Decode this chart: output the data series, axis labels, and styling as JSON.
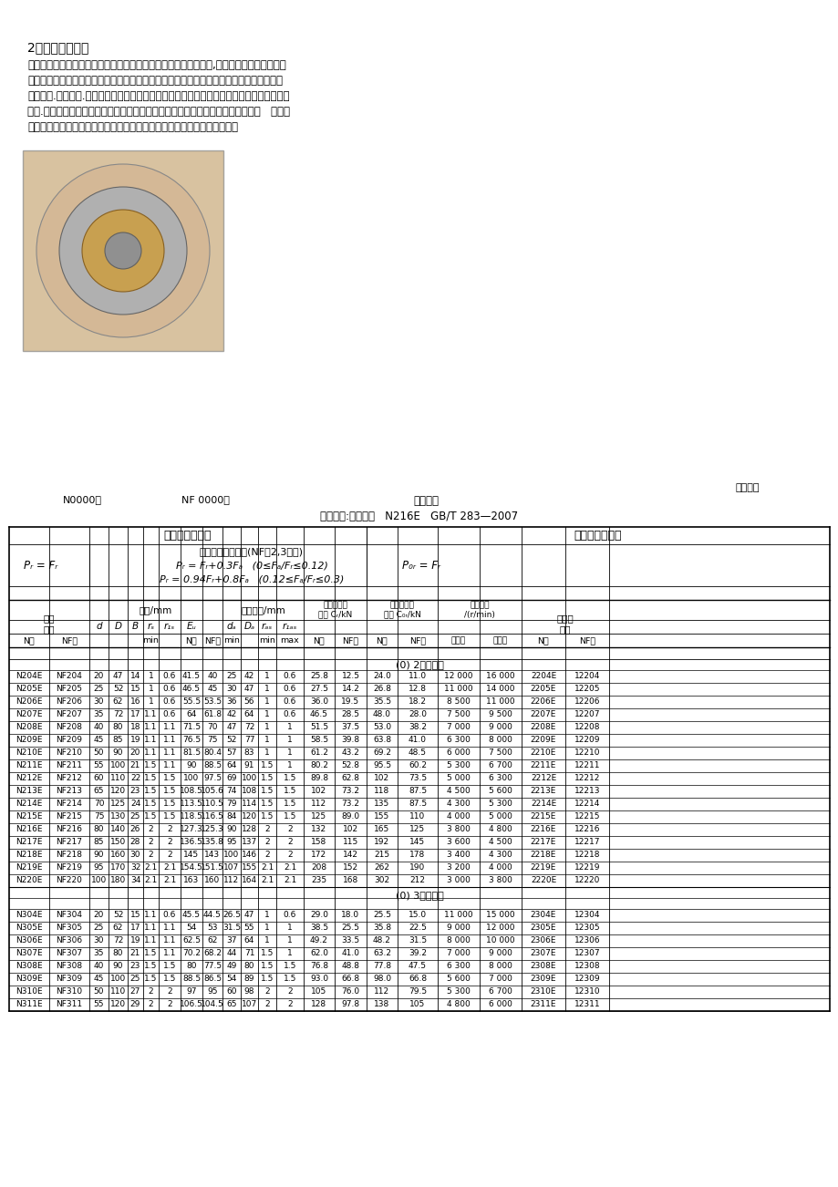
{
  "title": "2、圆柱滚子轴承",
  "para_lines": [
    "圆柱滚子轴承的滚子通常由一个轴承套圈的两个挡边引导，保持架,滚子和引导套圈组成一组",
    "合件，可与另一个轴承套圈分离，属于可分离轴承。此种轴承安装，拆卸比较方便，尤其是",
    "当要求内.外圈与轴.壳体都是过盈配合时更显示优点。此类轴承一般只用于承受径向载荷，只",
    "有内.外圈均带挡边的单列轴承可承受较小的定常轴向载荷或较大的间歇轴向载荷。   主要用",
    "于大型电机，机床主轴，车轴轴筱，柴油机曲轴以及汽车，托牛记的变筱等"
  ],
  "label_example": "标记示例:滚动轴承   N216E   GB/T 283—2007",
  "header_dynamic": "径向当量动载荷",
  "header_static": "径向当量静载荷",
  "formula_Pr": "Pᵣ = Fᵣ",
  "formula_nf_label": "对轴向承载的轴承(NF型2,3系列)",
  "formula_nf1": "Pᵣ = Fᵣ+0.3Fₐ   (0≤Fₐ/Fᵣ≤0.12)",
  "formula_nf2": "Pᵣ = 0.94Fᵣ+0.8Fₐ   (0.12≤Fₐ/Fᵣ≤0.3)",
  "formula_P0r": "P₀ᵣ = Fᵣ",
  "grp_bearing": "轴承\n代号",
  "grp_size": "尺寸/mm",
  "grp_install": "安装尺寸/mm",
  "grp_Cr": "基本额定动\n载荷 Cᵣ/kN",
  "grp_C0r": "基本额定静\n载荷 C₀ᵣ/kN",
  "grp_speed": "极限转速\n/(r/min)",
  "grp_orig": "原轴承\n代号",
  "sub1_rs": "rₛ",
  "sub1_r1s": "r₁ₛ",
  "sub1_Ew": "Eᵤ",
  "sub1_da": "dₐ",
  "sub1_Da": "Dₐ",
  "sub1_ras": "rₐₛ",
  "sub1_r1as": "r₁ₐₛ",
  "sub_min": "min",
  "sub_max": "max",
  "sub_N": "N型",
  "sub_NF": "NF型",
  "sub_grease": "脂润滑",
  "sub_oil": "油润滑",
  "section_02": "(0) 2尺寸系列",
  "section_03": "(0) 3尺寸系列",
  "N0000": "N0000型",
  "NF0000": "NF 0000型",
  "anzhuang": "安装尺寸",
  "guiding": "规定画法",
  "rows_02": [
    [
      "N204E",
      "NF204",
      "20",
      "47",
      "14",
      "1",
      "0.6",
      "41.5",
      "40",
      "25",
      "42",
      "1",
      "0.6",
      "25.8",
      "12.5",
      "24.0",
      "11.0",
      "12 000",
      "16 000",
      "2204E",
      "12204"
    ],
    [
      "N205E",
      "NF205",
      "25",
      "52",
      "15",
      "1",
      "0.6",
      "46.5",
      "45",
      "30",
      "47",
      "1",
      "0.6",
      "27.5",
      "14.2",
      "26.8",
      "12.8",
      "11 000",
      "14 000",
      "2205E",
      "12205"
    ],
    [
      "N206E",
      "NF206",
      "30",
      "62",
      "16",
      "1",
      "0.6",
      "55.5",
      "53.5",
      "36",
      "56",
      "1",
      "0.6",
      "36.0",
      "19.5",
      "35.5",
      "18.2",
      "8 500",
      "11 000",
      "2206E",
      "12206"
    ],
    [
      "N207E",
      "NF207",
      "35",
      "72",
      "17",
      "1.1",
      "0.6",
      "64",
      "61.8",
      "42",
      "64",
      "1",
      "0.6",
      "46.5",
      "28.5",
      "48.0",
      "28.0",
      "7 500",
      "9 500",
      "2207E",
      "12207"
    ],
    [
      "N208E",
      "NF208",
      "40",
      "80",
      "18",
      "1.1",
      "1.1",
      "71.5",
      "70",
      "47",
      "72",
      "1",
      "1",
      "51.5",
      "37.5",
      "53.0",
      "38.2",
      "7 000",
      "9 000",
      "2208E",
      "12208"
    ],
    [
      "N209E",
      "NF209",
      "45",
      "85",
      "19",
      "1.1",
      "1.1",
      "76.5",
      "75",
      "52",
      "77",
      "1",
      "1",
      "58.5",
      "39.8",
      "63.8",
      "41.0",
      "6 300",
      "8 000",
      "2209E",
      "12209"
    ],
    [
      "N210E",
      "NF210",
      "50",
      "90",
      "20",
      "1.1",
      "1.1",
      "81.5",
      "80.4",
      "57",
      "83",
      "1",
      "1",
      "61.2",
      "43.2",
      "69.2",
      "48.5",
      "6 000",
      "7 500",
      "2210E",
      "12210"
    ],
    [
      "N211E",
      "NF211",
      "55",
      "100",
      "21",
      "1.5",
      "1.1",
      "90",
      "88.5",
      "64",
      "91",
      "1.5",
      "1",
      "80.2",
      "52.8",
      "95.5",
      "60.2",
      "5 300",
      "6 700",
      "2211E",
      "12211"
    ],
    [
      "N212E",
      "NF212",
      "60",
      "110",
      "22",
      "1.5",
      "1.5",
      "100",
      "97.5",
      "69",
      "100",
      "1.5",
      "1.5",
      "89.8",
      "62.8",
      "102",
      "73.5",
      "5 000",
      "6 300",
      "2212E",
      "12212"
    ],
    [
      "N213E",
      "NF213",
      "65",
      "120",
      "23",
      "1.5",
      "1.5",
      "108.5",
      "105.6",
      "74",
      "108",
      "1.5",
      "1.5",
      "102",
      "73.2",
      "118",
      "87.5",
      "4 500",
      "5 600",
      "2213E",
      "12213"
    ],
    [
      "N214E",
      "NF214",
      "70",
      "125",
      "24",
      "1.5",
      "1.5",
      "113.5",
      "110.5",
      "79",
      "114",
      "1.5",
      "1.5",
      "112",
      "73.2",
      "135",
      "87.5",
      "4 300",
      "5 300",
      "2214E",
      "12214"
    ],
    [
      "N215E",
      "NF215",
      "75",
      "130",
      "25",
      "1.5",
      "1.5",
      "118.5",
      "116.5",
      "84",
      "120",
      "1.5",
      "1.5",
      "125",
      "89.0",
      "155",
      "110",
      "4 000",
      "5 000",
      "2215E",
      "12215"
    ],
    [
      "N216E",
      "NF216",
      "80",
      "140",
      "26",
      "2",
      "2",
      "127.3",
      "125.3",
      "90",
      "128",
      "2",
      "2",
      "132",
      "102",
      "165",
      "125",
      "3 800",
      "4 800",
      "2216E",
      "12216"
    ],
    [
      "N217E",
      "NF217",
      "85",
      "150",
      "28",
      "2",
      "2",
      "136.5",
      "135.8",
      "95",
      "137",
      "2",
      "2",
      "158",
      "115",
      "192",
      "145",
      "3 600",
      "4 500",
      "2217E",
      "12217"
    ],
    [
      "N218E",
      "NF218",
      "90",
      "160",
      "30",
      "2",
      "2",
      "145",
      "143",
      "100",
      "146",
      "2",
      "2",
      "172",
      "142",
      "215",
      "178",
      "3 400",
      "4 300",
      "2218E",
      "12218"
    ],
    [
      "N219E",
      "NF219",
      "95",
      "170",
      "32",
      "2.1",
      "2.1",
      "154.5",
      "151.5",
      "107",
      "155",
      "2.1",
      "2.1",
      "208",
      "152",
      "262",
      "190",
      "3 200",
      "4 000",
      "2219E",
      "12219"
    ],
    [
      "N220E",
      "NF220",
      "100",
      "180",
      "34",
      "2.1",
      "2.1",
      "163",
      "160",
      "112",
      "164",
      "2.1",
      "2.1",
      "235",
      "168",
      "302",
      "212",
      "3 000",
      "3 800",
      "2220E",
      "12220"
    ]
  ],
  "rows_03": [
    [
      "N304E",
      "NF304",
      "20",
      "52",
      "15",
      "1.1",
      "0.6",
      "45.5",
      "44.5",
      "26.5",
      "47",
      "1",
      "0.6",
      "29.0",
      "18.0",
      "25.5",
      "15.0",
      "11 000",
      "15 000",
      "2304E",
      "12304"
    ],
    [
      "N305E",
      "NF305",
      "25",
      "62",
      "17",
      "1.1",
      "1.1",
      "54",
      "53",
      "31.5",
      "55",
      "1",
      "1",
      "38.5",
      "25.5",
      "35.8",
      "22.5",
      "9 000",
      "12 000",
      "2305E",
      "12305"
    ],
    [
      "N306E",
      "NF306",
      "30",
      "72",
      "19",
      "1.1",
      "1.1",
      "62.5",
      "62",
      "37",
      "64",
      "1",
      "1",
      "49.2",
      "33.5",
      "48.2",
      "31.5",
      "8 000",
      "10 000",
      "2306E",
      "12306"
    ],
    [
      "N307E",
      "NF307",
      "35",
      "80",
      "21",
      "1.5",
      "1.1",
      "70.2",
      "68.2",
      "44",
      "71",
      "1.5",
      "1",
      "62.0",
      "41.0",
      "63.2",
      "39.2",
      "7 000",
      "9 000",
      "2307E",
      "12307"
    ],
    [
      "N308E",
      "NF308",
      "40",
      "90",
      "23",
      "1.5",
      "1.5",
      "80",
      "77.5",
      "49",
      "80",
      "1.5",
      "1.5",
      "76.8",
      "48.8",
      "77.8",
      "47.5",
      "6 300",
      "8 000",
      "2308E",
      "12308"
    ],
    [
      "N309E",
      "NF309",
      "45",
      "100",
      "25",
      "1.5",
      "1.5",
      "88.5",
      "86.5",
      "54",
      "89",
      "1.5",
      "1.5",
      "93.0",
      "66.8",
      "98.0",
      "66.8",
      "5 600",
      "7 000",
      "2309E",
      "12309"
    ],
    [
      "N310E",
      "NF310",
      "50",
      "110",
      "27",
      "2",
      "2",
      "97",
      "95",
      "60",
      "98",
      "2",
      "2",
      "105",
      "76.0",
      "112",
      "79.5",
      "5 300",
      "6 700",
      "2310E",
      "12310"
    ],
    [
      "N311E",
      "NF311",
      "55",
      "120",
      "29",
      "2",
      "2",
      "106.5",
      "104.5",
      "65",
      "107",
      "2",
      "2",
      "128",
      "97.8",
      "138",
      "105",
      "4 800",
      "6 000",
      "2311E",
      "12311"
    ]
  ]
}
